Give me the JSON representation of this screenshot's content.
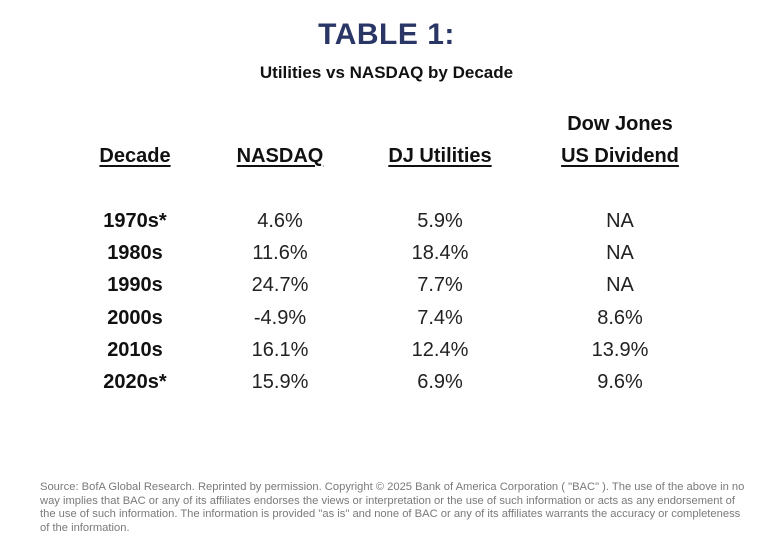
{
  "title": "TABLE 1:",
  "subtitle": "Utilities vs NASDAQ by Decade",
  "columns": {
    "decade": "Decade",
    "nasdaq": "NASDAQ",
    "utilities": "DJ Utilities",
    "dividend_line1": "Dow Jones",
    "dividend_line2": "US Dividend"
  },
  "rows": [
    {
      "decade": "1970s*",
      "nasdaq": "4.6%",
      "utilities": "5.9%",
      "dividend": "NA"
    },
    {
      "decade": "1980s",
      "nasdaq": "11.6%",
      "utilities": "18.4%",
      "dividend": "NA"
    },
    {
      "decade": "1990s",
      "nasdaq": "24.7%",
      "utilities": "7.7%",
      "dividend": "NA"
    },
    {
      "decade": "2000s",
      "nasdaq": "-4.9%",
      "utilities": "7.4%",
      "dividend": "8.6%"
    },
    {
      "decade": "2010s",
      "nasdaq": "16.1%",
      "utilities": "12.4%",
      "dividend": "13.9%"
    },
    {
      "decade": "2020s*",
      "nasdaq": "15.9%",
      "utilities": "6.9%",
      "dividend": "9.6%"
    }
  ],
  "source": "Source: BofA Global Research. Reprinted by permission. Copyright © 2025 Bank of America Corporation ( \"BAC\" ). The use of the above in no way implies that BAC or any of its affiliates endorses the views or interpretation or the use of such information or acts as any endorsement of the use of such information. The information is provided \"as is\" and none of BAC or any of its affiliates warrants the accuracy or completeness of the information.",
  "colors": {
    "title": "#2a3766",
    "text": "#111111",
    "source_text": "#7a7a7a"
  }
}
